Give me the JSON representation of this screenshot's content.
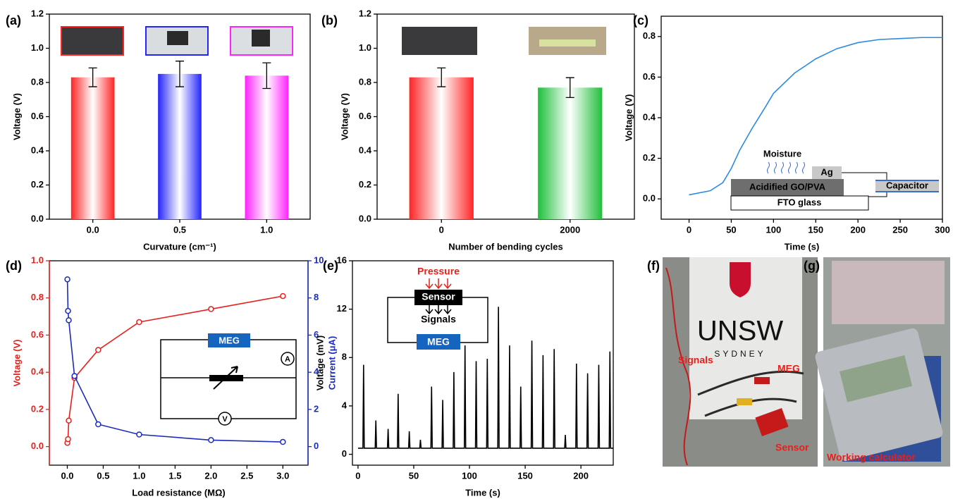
{
  "chart_data": [
    {
      "type": "bar",
      "panel_label": "(a)",
      "xlabel": "Curvature (cm⁻¹)",
      "ylabel": "Voltage (V)",
      "categories": [
        "0.0",
        "0.5",
        "1.0"
      ],
      "values": [
        0.83,
        0.85,
        0.84
      ],
      "errors": [
        0.055,
        0.075,
        0.075
      ],
      "colors": [
        "#ff2424",
        "#2424ff",
        "#ff24ff"
      ],
      "ylim": [
        0,
        1.2
      ],
      "yticks": [
        {
          "value": 0,
          "label": "0.0"
        },
        0.2,
        0.4,
        0.6,
        0.8,
        {
          "value": 1,
          "label": "1.0"
        },
        1.2
      ]
    },
    {
      "type": "bar",
      "panel_label": "(b)",
      "xlabel": "Number of bending cycles",
      "ylabel": "Voltage (V)",
      "categories": [
        "0",
        "2000"
      ],
      "values": [
        0.83,
        0.77
      ],
      "errors": [
        0.055,
        0.058
      ],
      "colors": [
        "#ff2424",
        "#1fbf3a"
      ],
      "ylim": [
        0,
        1.2
      ],
      "yticks": [
        {
          "value": 0,
          "label": "0.0"
        },
        0.2,
        0.4,
        0.6,
        0.8,
        {
          "value": 1,
          "label": "1.0"
        },
        1.2
      ]
    },
    {
      "type": "line",
      "panel_label": "(c)",
      "xlabel": "Time (s)",
      "ylabel": "Voltage (V)",
      "x": [
        0,
        25,
        40,
        50,
        60,
        75,
        90,
        100,
        125,
        150,
        175,
        200,
        225,
        250,
        275,
        300
      ],
      "series": [
        {
          "color": "#2b8be3",
          "values": [
            0.02,
            0.04,
            0.08,
            0.15,
            0.24,
            0.35,
            0.45,
            0.52,
            0.62,
            0.69,
            0.74,
            0.77,
            0.785,
            0.79,
            0.795,
            0.795
          ]
        }
      ],
      "xlim": [
        -33,
        300
      ],
      "xticks": [
        0,
        50,
        100,
        150,
        200,
        250,
        300
      ],
      "ylim": [
        -0.1,
        0.9
      ],
      "yticks": [
        {
          "value": 0,
          "label": "0.0"
        },
        0.2,
        0.4,
        0.6,
        0.8
      ],
      "annotations": [
        "Moisture",
        "Ag",
        "Acidified GO/PVA",
        "FTO glass",
        "Capacitor"
      ]
    },
    {
      "type": "line",
      "panel_label": "(d)",
      "xlabel": "Load resistance (MΩ)",
      "ylabel": "Voltage (V)",
      "y2label": "Current (μA)",
      "markers": true,
      "x": [
        0.001,
        0.01,
        0.02,
        0.1,
        0.43,
        1.0,
        2.0,
        3.0
      ],
      "series": [
        {
          "color": "#e8201c",
          "values": [
            0.02,
            0.04,
            0.14,
            0.37,
            0.52,
            0.67,
            0.74,
            0.81
          ]
        },
        {
          "color": "#1c2bb8",
          "axis": "y2",
          "values": [
            9.0,
            7.3,
            6.8,
            3.8,
            1.2,
            0.65,
            0.35,
            0.25
          ]
        }
      ],
      "xlim": [
        -0.25,
        3.35
      ],
      "xticks": [
        {
          "value": 0,
          "label": "0.0"
        },
        0.5,
        {
          "value": 1,
          "label": "1.0"
        },
        1.5,
        {
          "value": 2,
          "label": "2.0"
        },
        2.5,
        {
          "value": 3,
          "label": "3.0"
        }
      ],
      "ylim": [
        -0.1,
        1.0
      ],
      "yticks": [
        {
          "value": 0,
          "label": "0.0"
        },
        0.2,
        0.4,
        0.6,
        0.8,
        {
          "value": 1,
          "label": "1.0"
        }
      ],
      "y2lim": [
        -1,
        10
      ],
      "y2ticks": [
        0,
        2,
        4,
        6,
        8,
        10
      ],
      "annotations": [
        "MEG",
        "A",
        "V"
      ]
    },
    {
      "type": "line",
      "panel_label": "(e)",
      "xlabel": "Time (s)",
      "ylabel": "Voltage (mV)",
      "x": [
        0,
        4.4,
        5,
        5.6,
        15.4,
        16,
        16.6,
        26.4,
        27,
        27.6,
        35.4,
        36,
        36.6,
        45.4,
        46,
        46.6,
        55.4,
        56,
        56.6,
        65.4,
        66,
        66.6,
        75.4,
        76,
        76.6,
        85.4,
        86,
        86.6,
        95.4,
        96,
        96.6,
        105.4,
        106,
        106.6,
        115.4,
        116,
        116.6,
        125.4,
        126,
        126.6,
        135.4,
        136,
        136.6,
        145.4,
        146,
        146.6,
        155.4,
        156,
        156.6,
        165.4,
        166,
        166.6,
        175.4,
        176,
        176.6,
        185.4,
        186,
        186.6,
        195.4,
        196,
        196.6,
        205.4,
        206,
        206.6,
        215.4,
        216,
        216.6,
        225.4,
        226,
        226.6,
        229
      ],
      "series": [
        {
          "color": "#000000",
          "values": [
            0.5,
            0.5,
            7.4,
            0.5,
            0.5,
            2.8,
            0.5,
            0.5,
            2.1,
            0.5,
            0.5,
            5.0,
            0.5,
            0.5,
            1.9,
            0.5,
            0.5,
            1.2,
            0.5,
            0.5,
            5.6,
            0.5,
            0.5,
            4.5,
            0.5,
            0.5,
            6.8,
            0.5,
            0.5,
            9.0,
            0.5,
            0.5,
            7.7,
            0.5,
            0.5,
            7.9,
            0.5,
            0.5,
            12.2,
            0.5,
            0.5,
            9.0,
            0.5,
            0.5,
            5.6,
            0.5,
            0.5,
            9.4,
            0.5,
            0.5,
            8.2,
            0.5,
            0.5,
            8.7,
            0.5,
            0.5,
            1.6,
            0.5,
            0.5,
            7.5,
            0.5,
            0.5,
            6.7,
            0.5,
            0.5,
            7.4,
            0.5,
            0.5,
            8.5,
            0.5,
            0.5
          ]
        }
      ],
      "xlim": [
        -5,
        229
      ],
      "xticks": [
        0,
        50,
        100,
        150,
        200
      ],
      "ylim": [
        -0.9,
        16
      ],
      "yticks": [
        0,
        4,
        8,
        12,
        16
      ],
      "annotations": [
        "Pressure",
        "Sensor",
        "Signals",
        "MEG"
      ]
    }
  ],
  "photos": [
    {
      "panel_label": "(f)",
      "labels": [
        "UNSW",
        "SYDNEY",
        "Signals",
        "MEG",
        "Sensor"
      ]
    },
    {
      "panel_label": "(g)",
      "labels": [
        "Working calculator"
      ]
    }
  ]
}
